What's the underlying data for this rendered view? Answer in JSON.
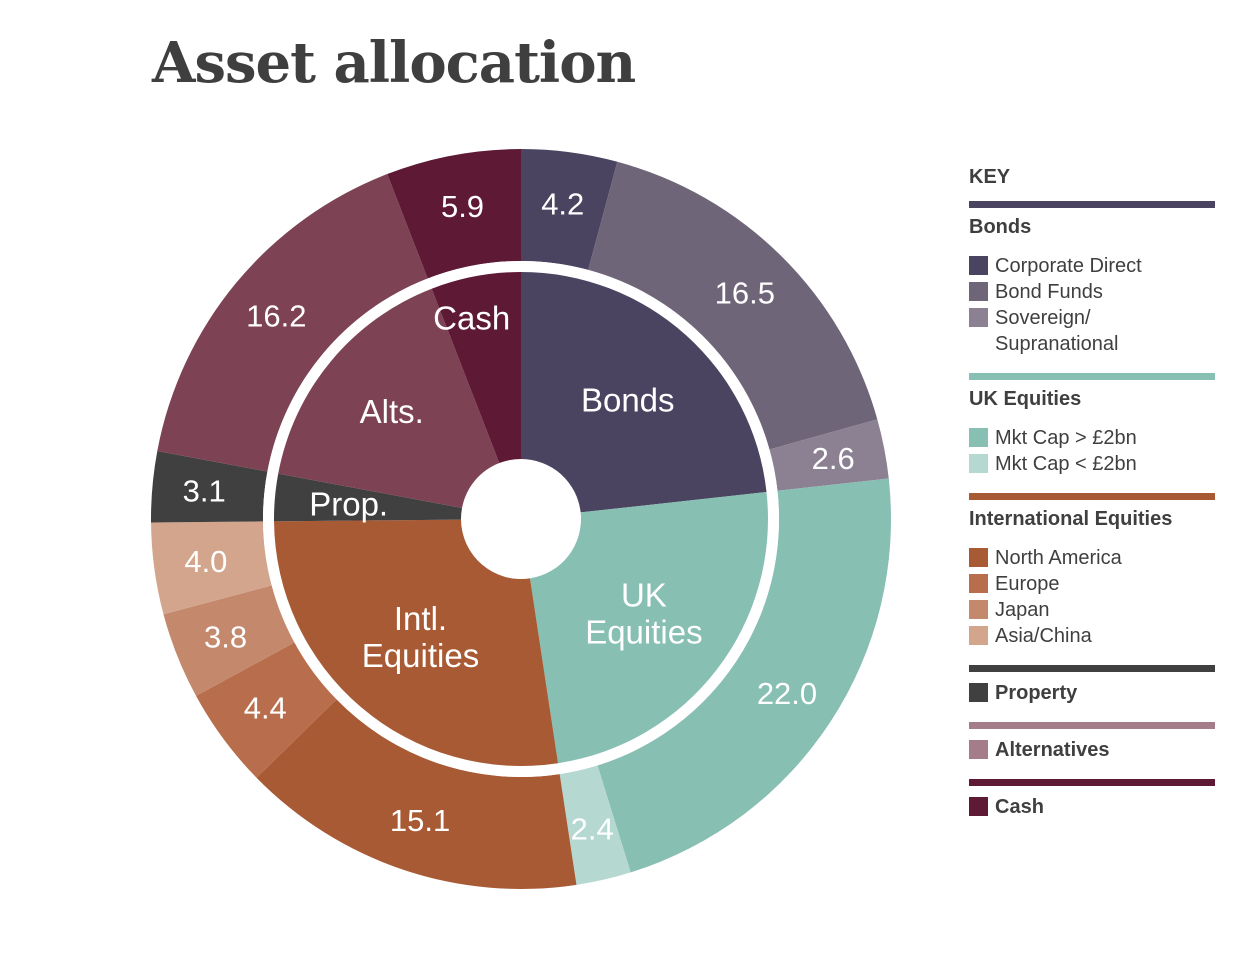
{
  "title": "Asset allocation",
  "chart_data": {
    "type": "pie",
    "title": "Asset allocation",
    "inner": [
      {
        "label": "Bonds",
        "value": 23.3,
        "color": "#4a4460"
      },
      {
        "label": "UK\nEquities",
        "value": 24.4,
        "color": "#88bfb3"
      },
      {
        "label": "Intl.\nEquities",
        "value": 27.3,
        "color": "#a85a35"
      },
      {
        "label": "Prop.",
        "value": 3.1,
        "color": "#404040"
      },
      {
        "label": "Alts.",
        "value": 16.2,
        "color": "#7d4253"
      },
      {
        "label": "Cash",
        "value": 5.9,
        "color": "#5e1a35"
      }
    ],
    "outer": [
      {
        "name": "Corporate Direct",
        "value": 4.2,
        "label": "4.2",
        "color": "#4a4460"
      },
      {
        "name": "Bond Funds",
        "value": 16.5,
        "label": "16.5",
        "color": "#6f6579"
      },
      {
        "name": "Sovereign/ Supranational",
        "value": 2.6,
        "label": "2.6",
        "color": "#8c8193"
      },
      {
        "name": "Mkt Cap > £2bn",
        "value": 22.0,
        "label": "22.0",
        "color": "#88bfb3"
      },
      {
        "name": "Mkt Cap < £2bn",
        "value": 2.4,
        "label": "2.4",
        "color": "#b5d8d1"
      },
      {
        "name": "North America",
        "value": 15.1,
        "label": "15.1",
        "color": "#a85a35"
      },
      {
        "name": "Europe",
        "value": 4.4,
        "label": "4.4",
        "color": "#b86e4c"
      },
      {
        "name": "Japan",
        "value": 3.8,
        "label": "3.8",
        "color": "#c4896c"
      },
      {
        "name": "Asia/China",
        "value": 4.0,
        "label": "4.0",
        "color": "#d3a58c"
      },
      {
        "name": "Property",
        "value": 3.1,
        "label": "3.1",
        "color": "#404040"
      },
      {
        "name": "Alternatives",
        "value": 16.2,
        "label": "16.2",
        "color": "#7d4253"
      },
      {
        "name": "Cash",
        "value": 5.9,
        "label": "5.9",
        "color": "#5e1a35"
      }
    ]
  },
  "legend": {
    "title": "KEY",
    "groups": [
      {
        "title": "Bonds",
        "rule_color": "#4a4460",
        "items": [
          {
            "label": "Corporate Direct",
            "color": "#4a4460"
          },
          {
            "label": "Bond Funds",
            "color": "#6f6579"
          },
          {
            "label": "Sovereign/\nSupranational",
            "color": "#8c8193"
          }
        ]
      },
      {
        "title": "UK Equities",
        "rule_color": "#88bfb3",
        "items": [
          {
            "label": "Mkt Cap > £2bn",
            "color": "#88bfb3"
          },
          {
            "label": "Mkt Cap < £2bn",
            "color": "#b5d8d1"
          }
        ]
      },
      {
        "title": "International Equities",
        "rule_color": "#a85a35",
        "items": [
          {
            "label": "North America",
            "color": "#a85a35"
          },
          {
            "label": "Europe",
            "color": "#b86e4c"
          },
          {
            "label": "Japan",
            "color": "#c4896c"
          },
          {
            "label": "Asia/China",
            "color": "#d3a58c"
          }
        ]
      },
      {
        "title": "",
        "rule_color": "#404040",
        "items": [
          {
            "label": "Property",
            "color": "#404040"
          }
        ]
      },
      {
        "title": "",
        "rule_color": "#a57d8a",
        "items": [
          {
            "label": "Alternatives",
            "color": "#a57d8a"
          }
        ]
      },
      {
        "title": "",
        "rule_color": "#5e1a35",
        "items": [
          {
            "label": "Cash",
            "color": "#5e1a35"
          }
        ]
      }
    ]
  }
}
